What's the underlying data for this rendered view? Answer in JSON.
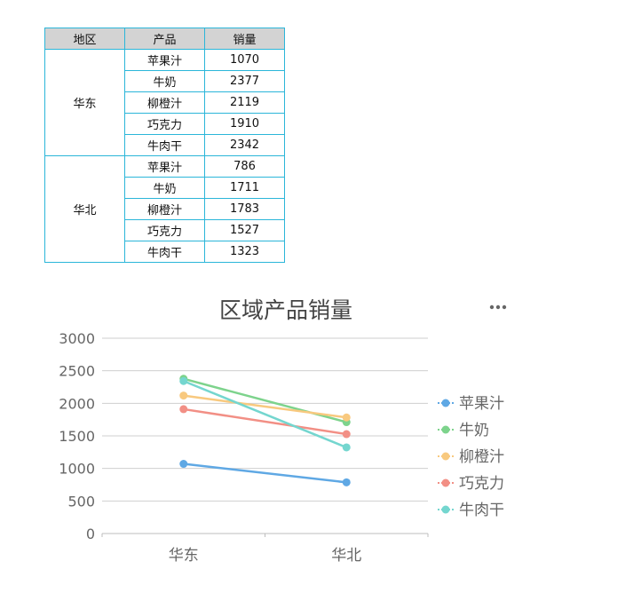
{
  "table": {
    "headers": [
      "地区",
      "产品",
      "销量"
    ],
    "groups": [
      {
        "region": "华东",
        "rows": [
          {
            "product": "苹果汁",
            "value": "1070"
          },
          {
            "product": "牛奶",
            "value": "2377"
          },
          {
            "product": "柳橙汁",
            "value": "2119"
          },
          {
            "product": "巧克力",
            "value": "1910"
          },
          {
            "product": "牛肉干",
            "value": "2342"
          }
        ]
      },
      {
        "region": "华北",
        "rows": [
          {
            "product": "苹果汁",
            "value": "786"
          },
          {
            "product": "牛奶",
            "value": "1711"
          },
          {
            "product": "柳橙汁",
            "value": "1783"
          },
          {
            "product": "巧克力",
            "value": "1527"
          },
          {
            "product": "牛肉干",
            "value": "1323"
          }
        ]
      }
    ]
  },
  "chart_data": {
    "type": "line",
    "title": "区域产品销量",
    "categories": [
      "华东",
      "华北"
    ],
    "ylim": [
      0,
      3000
    ],
    "yticks": [
      0,
      500,
      1000,
      1500,
      2000,
      2500,
      3000
    ],
    "grid": true,
    "legend_position": "right",
    "series": [
      {
        "name": "苹果汁",
        "color": "#5fa8e4",
        "values": [
          1070,
          786
        ]
      },
      {
        "name": "牛奶",
        "color": "#7dd38c",
        "values": [
          2377,
          1711
        ]
      },
      {
        "name": "柳橙汁",
        "color": "#f8c97f",
        "values": [
          2119,
          1783
        ]
      },
      {
        "name": "巧克力",
        "color": "#f28f85",
        "values": [
          1910,
          1527
        ]
      },
      {
        "name": "牛肉干",
        "color": "#74d6cf",
        "values": [
          2342,
          1323
        ]
      }
    ]
  }
}
